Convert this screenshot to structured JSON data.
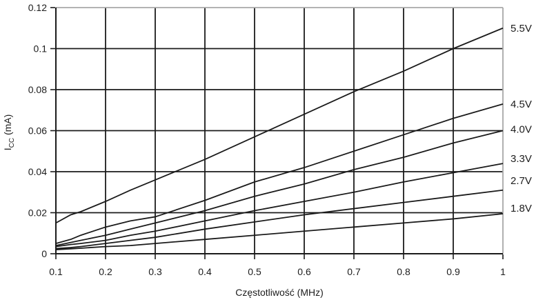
{
  "figure": {
    "background": "#ffffff",
    "text_color": "#1c1c1c"
  },
  "chart_data": {
    "type": "line",
    "title": "",
    "xlabel": "Częstotliwość (MHz)",
    "ylabel": "Icc (mA)",
    "ylabel_parts": {
      "pre": "I",
      "sub": "CC",
      "post": " (mA)"
    },
    "xlim": [
      0.1,
      1.0
    ],
    "ylim": [
      0,
      0.12
    ],
    "grid": true,
    "legend_position": "right-edge-labels",
    "line_color": "#1a1a1a",
    "grid_color": "#1a1a1a",
    "outer_border_color": "#a8a8a8",
    "x_tick_values": [
      0.1,
      0.2,
      0.3,
      0.4,
      0.5,
      0.6,
      0.7,
      0.8,
      0.9,
      1.0
    ],
    "x_tick_labels": [
      "0.1",
      "0.2",
      "0.3",
      "0.4",
      "0.5",
      "0.6",
      "0.7",
      "0.8",
      "0.9",
      "1"
    ],
    "y_tick_values": [
      0,
      0.02,
      0.04,
      0.06,
      0.08,
      0.1,
      0.12
    ],
    "y_tick_labels": [
      "0",
      "0.02",
      "0.04",
      "0.06",
      "0.08",
      "0.1",
      "0.12"
    ],
    "x": [
      0.1,
      0.13,
      0.15,
      0.2,
      0.25,
      0.3,
      0.4,
      0.5,
      0.6,
      0.7,
      0.8,
      0.9,
      1.0
    ],
    "series": [
      {
        "name": "5.5V",
        "values": [
          0.015,
          0.019,
          0.0205,
          0.0255,
          0.031,
          0.036,
          0.046,
          0.057,
          0.068,
          0.079,
          0.089,
          0.1,
          0.11
        ],
        "label_dy": 0
      },
      {
        "name": "4.5V",
        "values": [
          0.005,
          0.007,
          0.009,
          0.013,
          0.016,
          0.018,
          0.026,
          0.035,
          0.042,
          0.05,
          0.058,
          0.066,
          0.073
        ],
        "label_dy": 0
      },
      {
        "name": "4.0V",
        "values": [
          0.004,
          0.0055,
          0.0065,
          0.009,
          0.012,
          0.015,
          0.021,
          0.028,
          0.034,
          0.041,
          0.047,
          0.054,
          0.06
        ],
        "label_dy": -2
      },
      {
        "name": "3.3V",
        "values": [
          0.0035,
          0.0045,
          0.005,
          0.0065,
          0.009,
          0.011,
          0.016,
          0.021,
          0.0255,
          0.03,
          0.035,
          0.0395,
          0.044
        ],
        "label_dy": -7
      },
      {
        "name": "2.7V",
        "values": [
          0.0025,
          0.003,
          0.0035,
          0.005,
          0.0065,
          0.008,
          0.012,
          0.0155,
          0.019,
          0.022,
          0.025,
          0.028,
          0.031
        ],
        "label_dy": -14
      },
      {
        "name": "1.8V",
        "values": [
          0.002,
          0.0024,
          0.0027,
          0.0035,
          0.004,
          0.005,
          0.007,
          0.009,
          0.011,
          0.013,
          0.015,
          0.017,
          0.0195
        ],
        "label_dy": -8
      }
    ]
  }
}
